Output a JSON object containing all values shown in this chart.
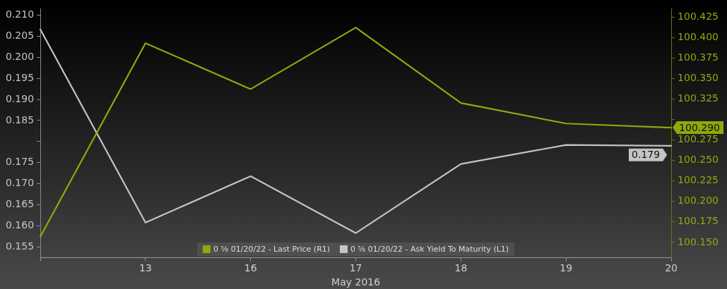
{
  "chart_data": {
    "type": "line",
    "xlabel": "May 2016",
    "categories": [
      null,
      "13",
      "16",
      "17",
      "18",
      "19",
      "20"
    ],
    "series": [
      {
        "name": "0 ⅝ 01/20/22 - Last Price (R1)",
        "color": "#8fa80c",
        "axis": "y2",
        "values": [
          100.157,
          100.393,
          100.337,
          100.412,
          100.32,
          100.295,
          100.29
        ],
        "value_labels": [
          null,
          null,
          null,
          null,
          null,
          null,
          "100.290"
        ]
      },
      {
        "name": "0 ⅝ 01/20/22 - Ask Yield To Maturity (L1)",
        "color": "#c4c4c4",
        "axis": "y",
        "values": [
          0.2066,
          0.1608,
          0.1718,
          0.1583,
          0.1747,
          0.1792,
          0.179
        ],
        "value_labels": [
          null,
          null,
          null,
          null,
          null,
          null,
          "0.179"
        ]
      }
    ],
    "ylim": [
      0.1525,
      0.2115
    ],
    "yticks": [
      0.155,
      {
        "value": 0.16,
        "label": "0.160"
      },
      0.165,
      {
        "value": 0.17,
        "label": "0.170"
      },
      0.175,
      {
        "value": 0.18,
        "label": null
      },
      0.185,
      {
        "value": 0.19,
        "label": "0.190"
      },
      0.195,
      {
        "value": 0.2,
        "label": "0.200"
      },
      0.205,
      {
        "value": 0.21,
        "label": "0.210"
      }
    ],
    "y2lim": [
      100.1315,
      100.435
    ],
    "y2ticks": [
      {
        "value": 100.15,
        "label": "100.150"
      },
      100.175,
      {
        "value": 100.2,
        "label": "100.200"
      },
      100.225,
      {
        "value": 100.25,
        "label": "100.250"
      },
      100.275,
      {
        "value": 100.3,
        "label": null
      },
      100.325,
      {
        "value": 100.35,
        "label": "100.350"
      },
      100.375,
      {
        "value": 100.4,
        "label": "100.400"
      },
      100.425
    ],
    "grid": false,
    "legend": "bottom",
    "marker": "none",
    "line_style": "solid"
  }
}
